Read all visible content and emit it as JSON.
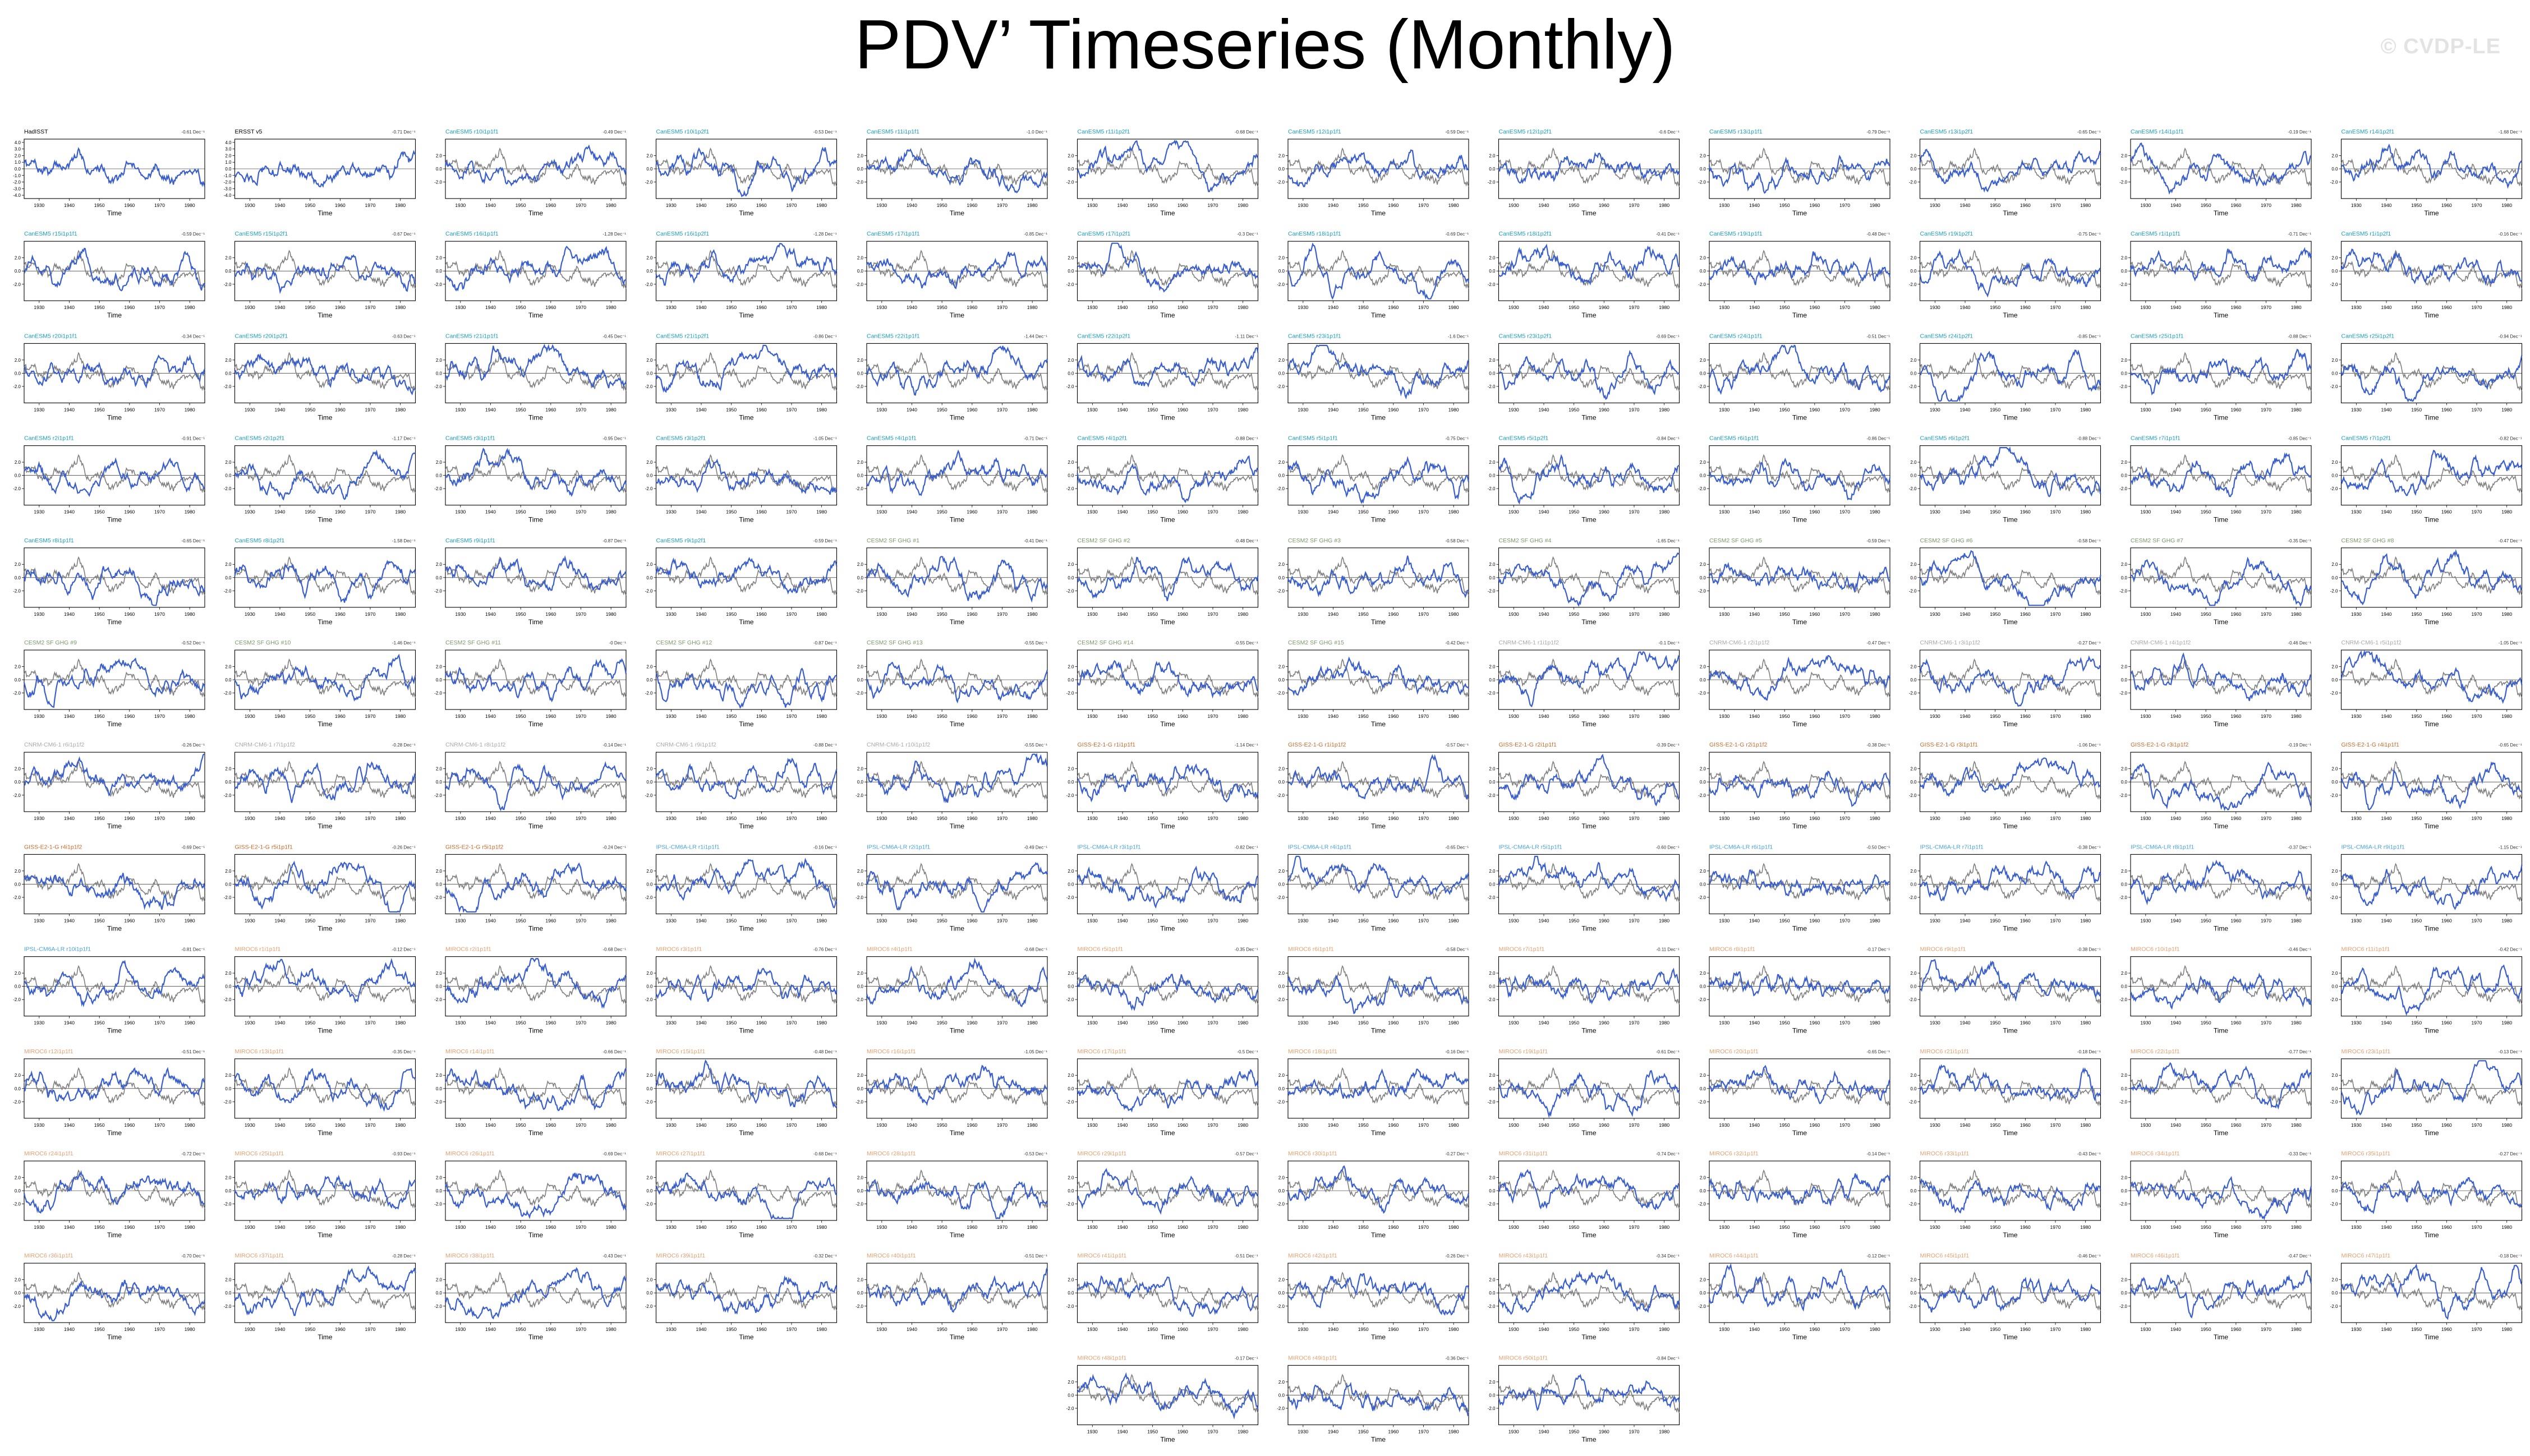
{
  "title": "PDV’ Timeseries (Monthly)",
  "watermark": "© CVDP-LE",
  "colors": {
    "model_line": "#3a5fcd",
    "observed_line": "#808080",
    "label_canesm5": "#1a9fbf",
    "label_cesm2": "#7a9a6a",
    "label_cnrm": "#a9a9a9",
    "label_giss": "#c86a2a",
    "label_ipsl": "#4aa3d9",
    "label_miroc6": "#e6a070"
  },
  "chart_data": {
    "type": "line",
    "panel_xlabel": "Time",
    "x_tick_labels": [
      "1930",
      "1940",
      "1950",
      "1960",
      "1970",
      "1980"
    ],
    "xlim": [
      1925,
      1985
    ],
    "ylim": [
      -4.5,
      4.5
    ],
    "y_tick_labels": [
      "2.0",
      "0.0",
      "-2.0"
    ],
    "obs_y_tick_labels": [
      "4.0",
      "3.0",
      "2.0",
      "1.0",
      "0.0",
      "-1.0",
      "-2.0",
      "-3.0",
      "-4.0"
    ],
    "series_types": [
      {
        "name": "model",
        "color": "#3a5fcd"
      },
      {
        "name": "observed",
        "color": "#808080"
      }
    ],
    "note": "Each small panel shows a monthly PDV index timeseries; model in blue, observed (HadISST) in gray. Individual monthly values are not legible at this resolution.",
    "panels": [
      {
        "label": "HadISST",
        "group": "obs",
        "trend": "-0.61 Dec⁻¹"
      },
      {
        "label": "ERSST v5",
        "group": "obs",
        "trend": "-0.71 Dec⁻¹"
      },
      {
        "label": "CanESM5 r10i1p1f1",
        "group": "canesm5",
        "trend": "-0.49 Dec⁻¹"
      },
      {
        "label": "CanESM5 r10i1p2f1",
        "group": "canesm5",
        "trend": "-0.53 Dec⁻¹"
      },
      {
        "label": "CanESM5 r11i1p1f1",
        "group": "canesm5",
        "trend": "-1.0 Dec⁻¹"
      },
      {
        "label": "CanESM5 r11i1p2f1",
        "group": "canesm5",
        "trend": "-0.68 Dec⁻¹"
      },
      {
        "label": "CanESM5 r12i1p1f1",
        "group": "canesm5",
        "trend": "-0.59 Dec⁻¹"
      },
      {
        "label": "CanESM5 r12i1p2f1",
        "group": "canesm5",
        "trend": "-0.6 Dec⁻¹"
      },
      {
        "label": "CanESM5 r13i1p1f1",
        "group": "canesm5",
        "trend": "-0.79 Dec⁻¹"
      },
      {
        "label": "CanESM5 r13i1p2f1",
        "group": "canesm5",
        "trend": "-0.65 Dec⁻¹"
      },
      {
        "label": "CanESM5 r14i1p1f1",
        "group": "canesm5",
        "trend": "-0.19 Dec⁻¹"
      },
      {
        "label": "CanESM5 r14i1p2f1",
        "group": "canesm5",
        "trend": "-1.68 Dec⁻¹"
      },
      {
        "label": "CanESM5 r15i1p1f1",
        "group": "canesm5",
        "trend": "-0.59 Dec⁻¹"
      },
      {
        "label": "CanESM5 r15i1p2f1",
        "group": "canesm5",
        "trend": "-0.67 Dec⁻¹"
      },
      {
        "label": "CanESM5 r16i1p1f1",
        "group": "canesm5",
        "trend": "-1.28 Dec⁻¹"
      },
      {
        "label": "CanESM5 r16i1p2f1",
        "group": "canesm5",
        "trend": "-1.28 Dec⁻¹"
      },
      {
        "label": "CanESM5 r17i1p1f1",
        "group": "canesm5",
        "trend": "-0.85 Dec⁻¹"
      },
      {
        "label": "CanESM5 r17i1p2f1",
        "group": "canesm5",
        "trend": "-0.3 Dec⁻¹"
      },
      {
        "label": "CanESM5 r18i1p1f1",
        "group": "canesm5",
        "trend": "-0.69 Dec⁻¹"
      },
      {
        "label": "CanESM5 r18i1p2f1",
        "group": "canesm5",
        "trend": "-0.41 Dec⁻¹"
      },
      {
        "label": "CanESM5 r19i1p1f1",
        "group": "canesm5",
        "trend": "-0.48 Dec⁻¹"
      },
      {
        "label": "CanESM5 r19i1p2f1",
        "group": "canesm5",
        "trend": "-0.75 Dec⁻¹"
      },
      {
        "label": "CanESM5 r1i1p1f1",
        "group": "canesm5",
        "trend": "-0.71 Dec⁻¹"
      },
      {
        "label": "CanESM5 r1i1p2f1",
        "group": "canesm5",
        "trend": "-0.16 Dec⁻¹"
      },
      {
        "label": "CanESM5 r20i1p1f1",
        "group": "canesm5",
        "trend": "-0.34 Dec⁻¹"
      },
      {
        "label": "CanESM5 r20i1p2f1",
        "group": "canesm5",
        "trend": "-0.63 Dec⁻¹"
      },
      {
        "label": "CanESM5 r21i1p1f1",
        "group": "canesm5",
        "trend": "-0.45 Dec⁻¹"
      },
      {
        "label": "CanESM5 r21i1p2f1",
        "group": "canesm5",
        "trend": "-0.86 Dec⁻¹"
      },
      {
        "label": "CanESM5 r22i1p1f1",
        "group": "canesm5",
        "trend": "-1.44 Dec⁻¹"
      },
      {
        "label": "CanESM5 r22i1p2f1",
        "group": "canesm5",
        "trend": "-1.11 Dec⁻¹"
      },
      {
        "label": "CanESM5 r23i1p1f1",
        "group": "canesm5",
        "trend": "-1.6 Dec⁻¹"
      },
      {
        "label": "CanESM5 r23i1p2f1",
        "group": "canesm5",
        "trend": "-0.69 Dec⁻¹"
      },
      {
        "label": "CanESM5 r24i1p1f1",
        "group": "canesm5",
        "trend": "-0.51 Dec⁻¹"
      },
      {
        "label": "CanESM5 r24i1p2f1",
        "group": "canesm5",
        "trend": "-0.85 Dec⁻¹"
      },
      {
        "label": "CanESM5 r25i1p1f1",
        "group": "canesm5",
        "trend": "-0.88 Dec⁻¹"
      },
      {
        "label": "CanESM5 r25i1p2f1",
        "group": "canesm5",
        "trend": "-0.94 Dec⁻¹"
      },
      {
        "label": "CanESM5 r2i1p1f1",
        "group": "canesm5",
        "trend": "-0.91 Dec⁻¹"
      },
      {
        "label": "CanESM5 r2i1p2f1",
        "group": "canesm5",
        "trend": "-1.17 Dec⁻¹"
      },
      {
        "label": "CanESM5 r3i1p1f1",
        "group": "canesm5",
        "trend": "-0.95 Dec⁻¹"
      },
      {
        "label": "CanESM5 r3i1p2f1",
        "group": "canesm5",
        "trend": "-1.05 Dec⁻¹"
      },
      {
        "label": "CanESM5 r4i1p1f1",
        "group": "canesm5",
        "trend": "-0.71 Dec⁻¹"
      },
      {
        "label": "CanESM5 r4i1p2f1",
        "group": "canesm5",
        "trend": "-0.88 Dec⁻¹"
      },
      {
        "label": "CanESM5 r5i1p1f1",
        "group": "canesm5",
        "trend": "-0.75 Dec⁻¹"
      },
      {
        "label": "CanESM5 r5i1p2f1",
        "group": "canesm5",
        "trend": "-0.84 Dec⁻¹"
      },
      {
        "label": "CanESM5 r6i1p1f1",
        "group": "canesm5",
        "trend": "-0.86 Dec⁻¹"
      },
      {
        "label": "CanESM5 r6i1p2f1",
        "group": "canesm5",
        "trend": "-0.88 Dec⁻¹"
      },
      {
        "label": "CanESM5 r7i1p1f1",
        "group": "canesm5",
        "trend": "-0.85 Dec⁻¹"
      },
      {
        "label": "CanESM5 r7i1p2f1",
        "group": "canesm5",
        "trend": "-0.82 Dec⁻¹"
      },
      {
        "label": "CanESM5 r8i1p1f1",
        "group": "canesm5",
        "trend": "-0.65 Dec⁻¹"
      },
      {
        "label": "CanESM5 r8i1p2f1",
        "group": "canesm5",
        "trend": "-1.58 Dec⁻¹"
      },
      {
        "label": "CanESM5 r9i1p1f1",
        "group": "canesm5",
        "trend": "-0.87 Dec⁻¹"
      },
      {
        "label": "CanESM5 r9i1p2f1",
        "group": "canesm5",
        "trend": "-0.59 Dec⁻¹"
      },
      {
        "label": "CESM2 SF GHG #1",
        "group": "cesm2",
        "trend": "-0.41 Dec⁻¹"
      },
      {
        "label": "CESM2 SF GHG #2",
        "group": "cesm2",
        "trend": "-0.48 Dec⁻¹"
      },
      {
        "label": "CESM2 SF GHG #3",
        "group": "cesm2",
        "trend": "-0.58 Dec⁻¹"
      },
      {
        "label": "CESM2 SF GHG #4",
        "group": "cesm2",
        "trend": "-1.65 Dec⁻¹"
      },
      {
        "label": "CESM2 SF GHG #5",
        "group": "cesm2",
        "trend": "-0.59 Dec⁻¹"
      },
      {
        "label": "CESM2 SF GHG #6",
        "group": "cesm2",
        "trend": "-0.58 Dec⁻¹"
      },
      {
        "label": "CESM2 SF GHG #7",
        "group": "cesm2",
        "trend": "-0.35 Dec⁻¹"
      },
      {
        "label": "CESM2 SF GHG #8",
        "group": "cesm2",
        "trend": "-0.47 Dec⁻¹"
      },
      {
        "label": "CESM2 SF GHG #9",
        "group": "cesm2",
        "trend": "-0.52 Dec⁻¹"
      },
      {
        "label": "CESM2 SF GHG #10",
        "group": "cesm2",
        "trend": "-1.46 Dec⁻¹"
      },
      {
        "label": "CESM2 SF GHG #11",
        "group": "cesm2",
        "trend": "-0 Dec⁻¹"
      },
      {
        "label": "CESM2 SF GHG #12",
        "group": "cesm2",
        "trend": "-0.87 Dec⁻¹"
      },
      {
        "label": "CESM2 SF GHG #13",
        "group": "cesm2",
        "trend": "-0.55 Dec⁻¹"
      },
      {
        "label": "CESM2 SF GHG #14",
        "group": "cesm2",
        "trend": "-0.55 Dec⁻¹"
      },
      {
        "label": "CESM2 SF GHG #15",
        "group": "cesm2",
        "trend": "-0.42 Dec⁻¹"
      },
      {
        "label": "CNRM-CM6-1 r1i1p1f2",
        "group": "cnrm",
        "trend": "-0.1 Dec⁻¹"
      },
      {
        "label": "CNRM-CM6-1 r2i1p1f2",
        "group": "cnrm",
        "trend": "-0.47 Dec⁻¹"
      },
      {
        "label": "CNRM-CM6-1 r3i1p1f2",
        "group": "cnrm",
        "trend": "-0.27 Dec⁻¹"
      },
      {
        "label": "CNRM-CM6-1 r4i1p1f2",
        "group": "cnrm",
        "trend": "-0.46 Dec⁻¹"
      },
      {
        "label": "CNRM-CM6-1 r5i1p1f2",
        "group": "cnrm",
        "trend": "-1.05 Dec⁻¹"
      },
      {
        "label": "CNRM-CM6-1 r6i1p1f2",
        "group": "cnrm",
        "trend": "-0.26 Dec⁻¹"
      },
      {
        "label": "CNRM-CM6-1 r7i1p1f2",
        "group": "cnrm",
        "trend": "-0.28 Dec⁻¹"
      },
      {
        "label": "CNRM-CM6-1 r8i1p1f2",
        "group": "cnrm",
        "trend": "-0.14 Dec⁻¹"
      },
      {
        "label": "CNRM-CM6-1 r9i1p1f2",
        "group": "cnrm",
        "trend": "-0.88 Dec⁻¹"
      },
      {
        "label": "CNRM-CM6-1 r10i1p1f2",
        "group": "cnrm",
        "trend": "-0.55 Dec⁻¹"
      },
      {
        "label": "GISS-E2-1-G r1i1p1f1",
        "group": "giss",
        "trend": "-1.14 Dec⁻¹"
      },
      {
        "label": "GISS-E2-1-G r1i1p1f2",
        "group": "giss",
        "trend": "-0.57 Dec⁻¹"
      },
      {
        "label": "GISS-E2-1-G r2i1p1f1",
        "group": "giss",
        "trend": "-0.39 Dec⁻¹"
      },
      {
        "label": "GISS-E2-1-G r2i1p1f2",
        "group": "giss",
        "trend": "-0.38 Dec⁻¹"
      },
      {
        "label": "GISS-E2-1-G r3i1p1f1",
        "group": "giss",
        "trend": "-1.06 Dec⁻¹"
      },
      {
        "label": "GISS-E2-1-G r3i1p1f2",
        "group": "giss",
        "trend": "-0.19 Dec⁻¹"
      },
      {
        "label": "GISS-E2-1-G r4i1p1f1",
        "group": "giss",
        "trend": "-0.65 Dec⁻¹"
      },
      {
        "label": "GISS-E2-1-G r4i1p1f2",
        "group": "giss",
        "trend": "-0.69 Dec⁻¹"
      },
      {
        "label": "GISS-E2-1-G r5i1p1f1",
        "group": "giss",
        "trend": "-0.26 Dec⁻¹"
      },
      {
        "label": "GISS-E2-1-G r5i1p1f2",
        "group": "giss",
        "trend": "-0.24 Dec⁻¹"
      },
      {
        "label": "IPSL-CM6A-LR r1i1p1f1",
        "group": "ipsl",
        "trend": "-0.16 Dec⁻¹"
      },
      {
        "label": "IPSL-CM6A-LR r2i1p1f1",
        "group": "ipsl",
        "trend": "-0.49 Dec⁻¹"
      },
      {
        "label": "IPSL-CM6A-LR r3i1p1f1",
        "group": "ipsl",
        "trend": "-0.82 Dec⁻¹"
      },
      {
        "label": "IPSL-CM6A-LR r4i1p1f1",
        "group": "ipsl",
        "trend": "-0.65 Dec⁻¹"
      },
      {
        "label": "IPSL-CM6A-LR r5i1p1f1",
        "group": "ipsl",
        "trend": "-0.60 Dec⁻¹"
      },
      {
        "label": "IPSL-CM6A-LR r6i1p1f1",
        "group": "ipsl",
        "trend": "-0.50 Dec⁻¹"
      },
      {
        "label": "IPSL-CM6A-LR r7i1p1f1",
        "group": "ipsl",
        "trend": "-0.38 Dec⁻¹"
      },
      {
        "label": "IPSL-CM6A-LR r8i1p1f1",
        "group": "ipsl",
        "trend": "-0.37 Dec⁻¹"
      },
      {
        "label": "IPSL-CM6A-LR r9i1p1f1",
        "group": "ipsl",
        "trend": "-1.15 Dec⁻¹"
      },
      {
        "label": "IPSL-CM6A-LR r10i1p1f1",
        "group": "ipsl",
        "trend": "-0.81 Dec⁻¹"
      },
      {
        "label": "MIROC6 r1i1p1f1",
        "group": "miroc6",
        "trend": "-0.12 Dec⁻¹"
      },
      {
        "label": "MIROC6 r2i1p1f1",
        "group": "miroc6",
        "trend": "-0.68 Dec⁻¹"
      },
      {
        "label": "MIROC6 r3i1p1f1",
        "group": "miroc6",
        "trend": "-0.76 Dec⁻¹"
      },
      {
        "label": "MIROC6 r4i1p1f1",
        "group": "miroc6",
        "trend": "-0.68 Dec⁻¹"
      },
      {
        "label": "MIROC6 r5i1p1f1",
        "group": "miroc6",
        "trend": "-0.35 Dec⁻¹"
      },
      {
        "label": "MIROC6 r6i1p1f1",
        "group": "miroc6",
        "trend": "-0.58 Dec⁻¹"
      },
      {
        "label": "MIROC6 r7i1p1f1",
        "group": "miroc6",
        "trend": "-0.11 Dec⁻¹"
      },
      {
        "label": "MIROC6 r8i1p1f1",
        "group": "miroc6",
        "trend": "-0.17 Dec⁻¹"
      },
      {
        "label": "MIROC6 r9i1p1f1",
        "group": "miroc6",
        "trend": "-0.38 Dec⁻¹"
      },
      {
        "label": "MIROC6 r10i1p1f1",
        "group": "miroc6",
        "trend": "-0.46 Dec⁻¹"
      },
      {
        "label": "MIROC6 r11i1p1f1",
        "group": "miroc6",
        "trend": "-0.42 Dec⁻¹"
      },
      {
        "label": "MIROC6 r12i1p1f1",
        "group": "miroc6",
        "trend": "-0.51 Dec⁻¹"
      },
      {
        "label": "MIROC6 r13i1p1f1",
        "group": "miroc6",
        "trend": "-0.35 Dec⁻¹"
      },
      {
        "label": "MIROC6 r14i1p1f1",
        "group": "miroc6",
        "trend": "-0.66 Dec⁻¹"
      },
      {
        "label": "MIROC6 r15i1p1f1",
        "group": "miroc6",
        "trend": "-0.48 Dec⁻¹"
      },
      {
        "label": "MIROC6 r16i1p1f1",
        "group": "miroc6",
        "trend": "-1.05 Dec⁻¹"
      },
      {
        "label": "MIROC6 r17i1p1f1",
        "group": "miroc6",
        "trend": "-0.5 Dec⁻¹"
      },
      {
        "label": "MIROC6 r18i1p1f1",
        "group": "miroc6",
        "trend": "-0.16 Dec⁻¹"
      },
      {
        "label": "MIROC6 r19i1p1f1",
        "group": "miroc6",
        "trend": "-0.61 Dec⁻¹"
      },
      {
        "label": "MIROC6 r20i1p1f1",
        "group": "miroc6",
        "trend": "-0.65 Dec⁻¹"
      },
      {
        "label": "MIROC6 r21i1p1f1",
        "group": "miroc6",
        "trend": "-0.18 Dec⁻¹"
      },
      {
        "label": "MIROC6 r22i1p1f1",
        "group": "miroc6",
        "trend": "-0.77 Dec⁻¹"
      },
      {
        "label": "MIROC6 r23i1p1f1",
        "group": "miroc6",
        "trend": "-0.13 Dec⁻¹"
      },
      {
        "label": "MIROC6 r24i1p1f1",
        "group": "miroc6",
        "trend": "-0.72 Dec⁻¹"
      },
      {
        "label": "MIROC6 r25i1p1f1",
        "group": "miroc6",
        "trend": "-0.93 Dec⁻¹"
      },
      {
        "label": "MIROC6 r26i1p1f1",
        "group": "miroc6",
        "trend": "-0.69 Dec⁻¹"
      },
      {
        "label": "MIROC6 r27i1p1f1",
        "group": "miroc6",
        "trend": "-0.68 Dec⁻¹"
      },
      {
        "label": "MIROC6 r28i1p1f1",
        "group": "miroc6",
        "trend": "-0.53 Dec⁻¹"
      },
      {
        "label": "MIROC6 r29i1p1f1",
        "group": "miroc6",
        "trend": "-0.57 Dec⁻¹"
      },
      {
        "label": "MIROC6 r30i1p1f1",
        "group": "miroc6",
        "trend": "-0.27 Dec⁻¹"
      },
      {
        "label": "MIROC6 r31i1p1f1",
        "group": "miroc6",
        "trend": "-0.74 Dec⁻¹"
      },
      {
        "label": "MIROC6 r32i1p1f1",
        "group": "miroc6",
        "trend": "-0.14 Dec⁻¹"
      },
      {
        "label": "MIROC6 r33i1p1f1",
        "group": "miroc6",
        "trend": "-0.43 Dec⁻¹"
      },
      {
        "label": "MIROC6 r34i1p1f1",
        "group": "miroc6",
        "trend": "-0.33 Dec⁻¹"
      },
      {
        "label": "MIROC6 r35i1p1f1",
        "group": "miroc6",
        "trend": "-0.27 Dec⁻¹"
      },
      {
        "label": "MIROC6 r36i1p1f1",
        "group": "miroc6",
        "trend": "-0.70 Dec⁻¹"
      },
      {
        "label": "MIROC6 r37i1p1f1",
        "group": "miroc6",
        "trend": "-0.28 Dec⁻¹"
      },
      {
        "label": "MIROC6 r38i1p1f1",
        "group": "miroc6",
        "trend": "-0.43 Dec⁻¹"
      },
      {
        "label": "MIROC6 r39i1p1f1",
        "group": "miroc6",
        "trend": "-0.32 Dec⁻¹"
      },
      {
        "label": "MIROC6 r40i1p1f1",
        "group": "miroc6",
        "trend": "-0.51 Dec⁻¹"
      },
      {
        "label": "MIROC6 r41i1p1f1",
        "group": "miroc6",
        "trend": "-0.51 Dec⁻¹"
      },
      {
        "label": "MIROC6 r42i1p1f1",
        "group": "miroc6",
        "trend": "-0.26 Dec⁻¹"
      },
      {
        "label": "MIROC6 r43i1p1f1",
        "group": "miroc6",
        "trend": "-0.34 Dec⁻¹"
      },
      {
        "label": "MIROC6 r44i1p1f1",
        "group": "miroc6",
        "trend": "-0.12 Dec⁻¹"
      },
      {
        "label": "MIROC6 r45i1p1f1",
        "group": "miroc6",
        "trend": "-0.46 Dec⁻¹"
      },
      {
        "label": "MIROC6 r46i1p1f1",
        "group": "miroc6",
        "trend": "-0.47 Dec⁻¹"
      },
      {
        "label": "MIROC6 r47i1p1f1",
        "group": "miroc6",
        "trend": "-0.18 Dec⁻¹"
      },
      {
        "label": "MIROC6 r48i1p1f1",
        "group": "miroc6",
        "trend": "-0.17 Dec⁻¹"
      },
      {
        "label": "MIROC6 r49i1p1f1",
        "group": "miroc6",
        "trend": "-0.36 Dec⁻¹"
      },
      {
        "label": "MIROC6 r50i1p1f1",
        "group": "miroc6",
        "trend": "-0.84 Dec⁻¹"
      }
    ]
  }
}
